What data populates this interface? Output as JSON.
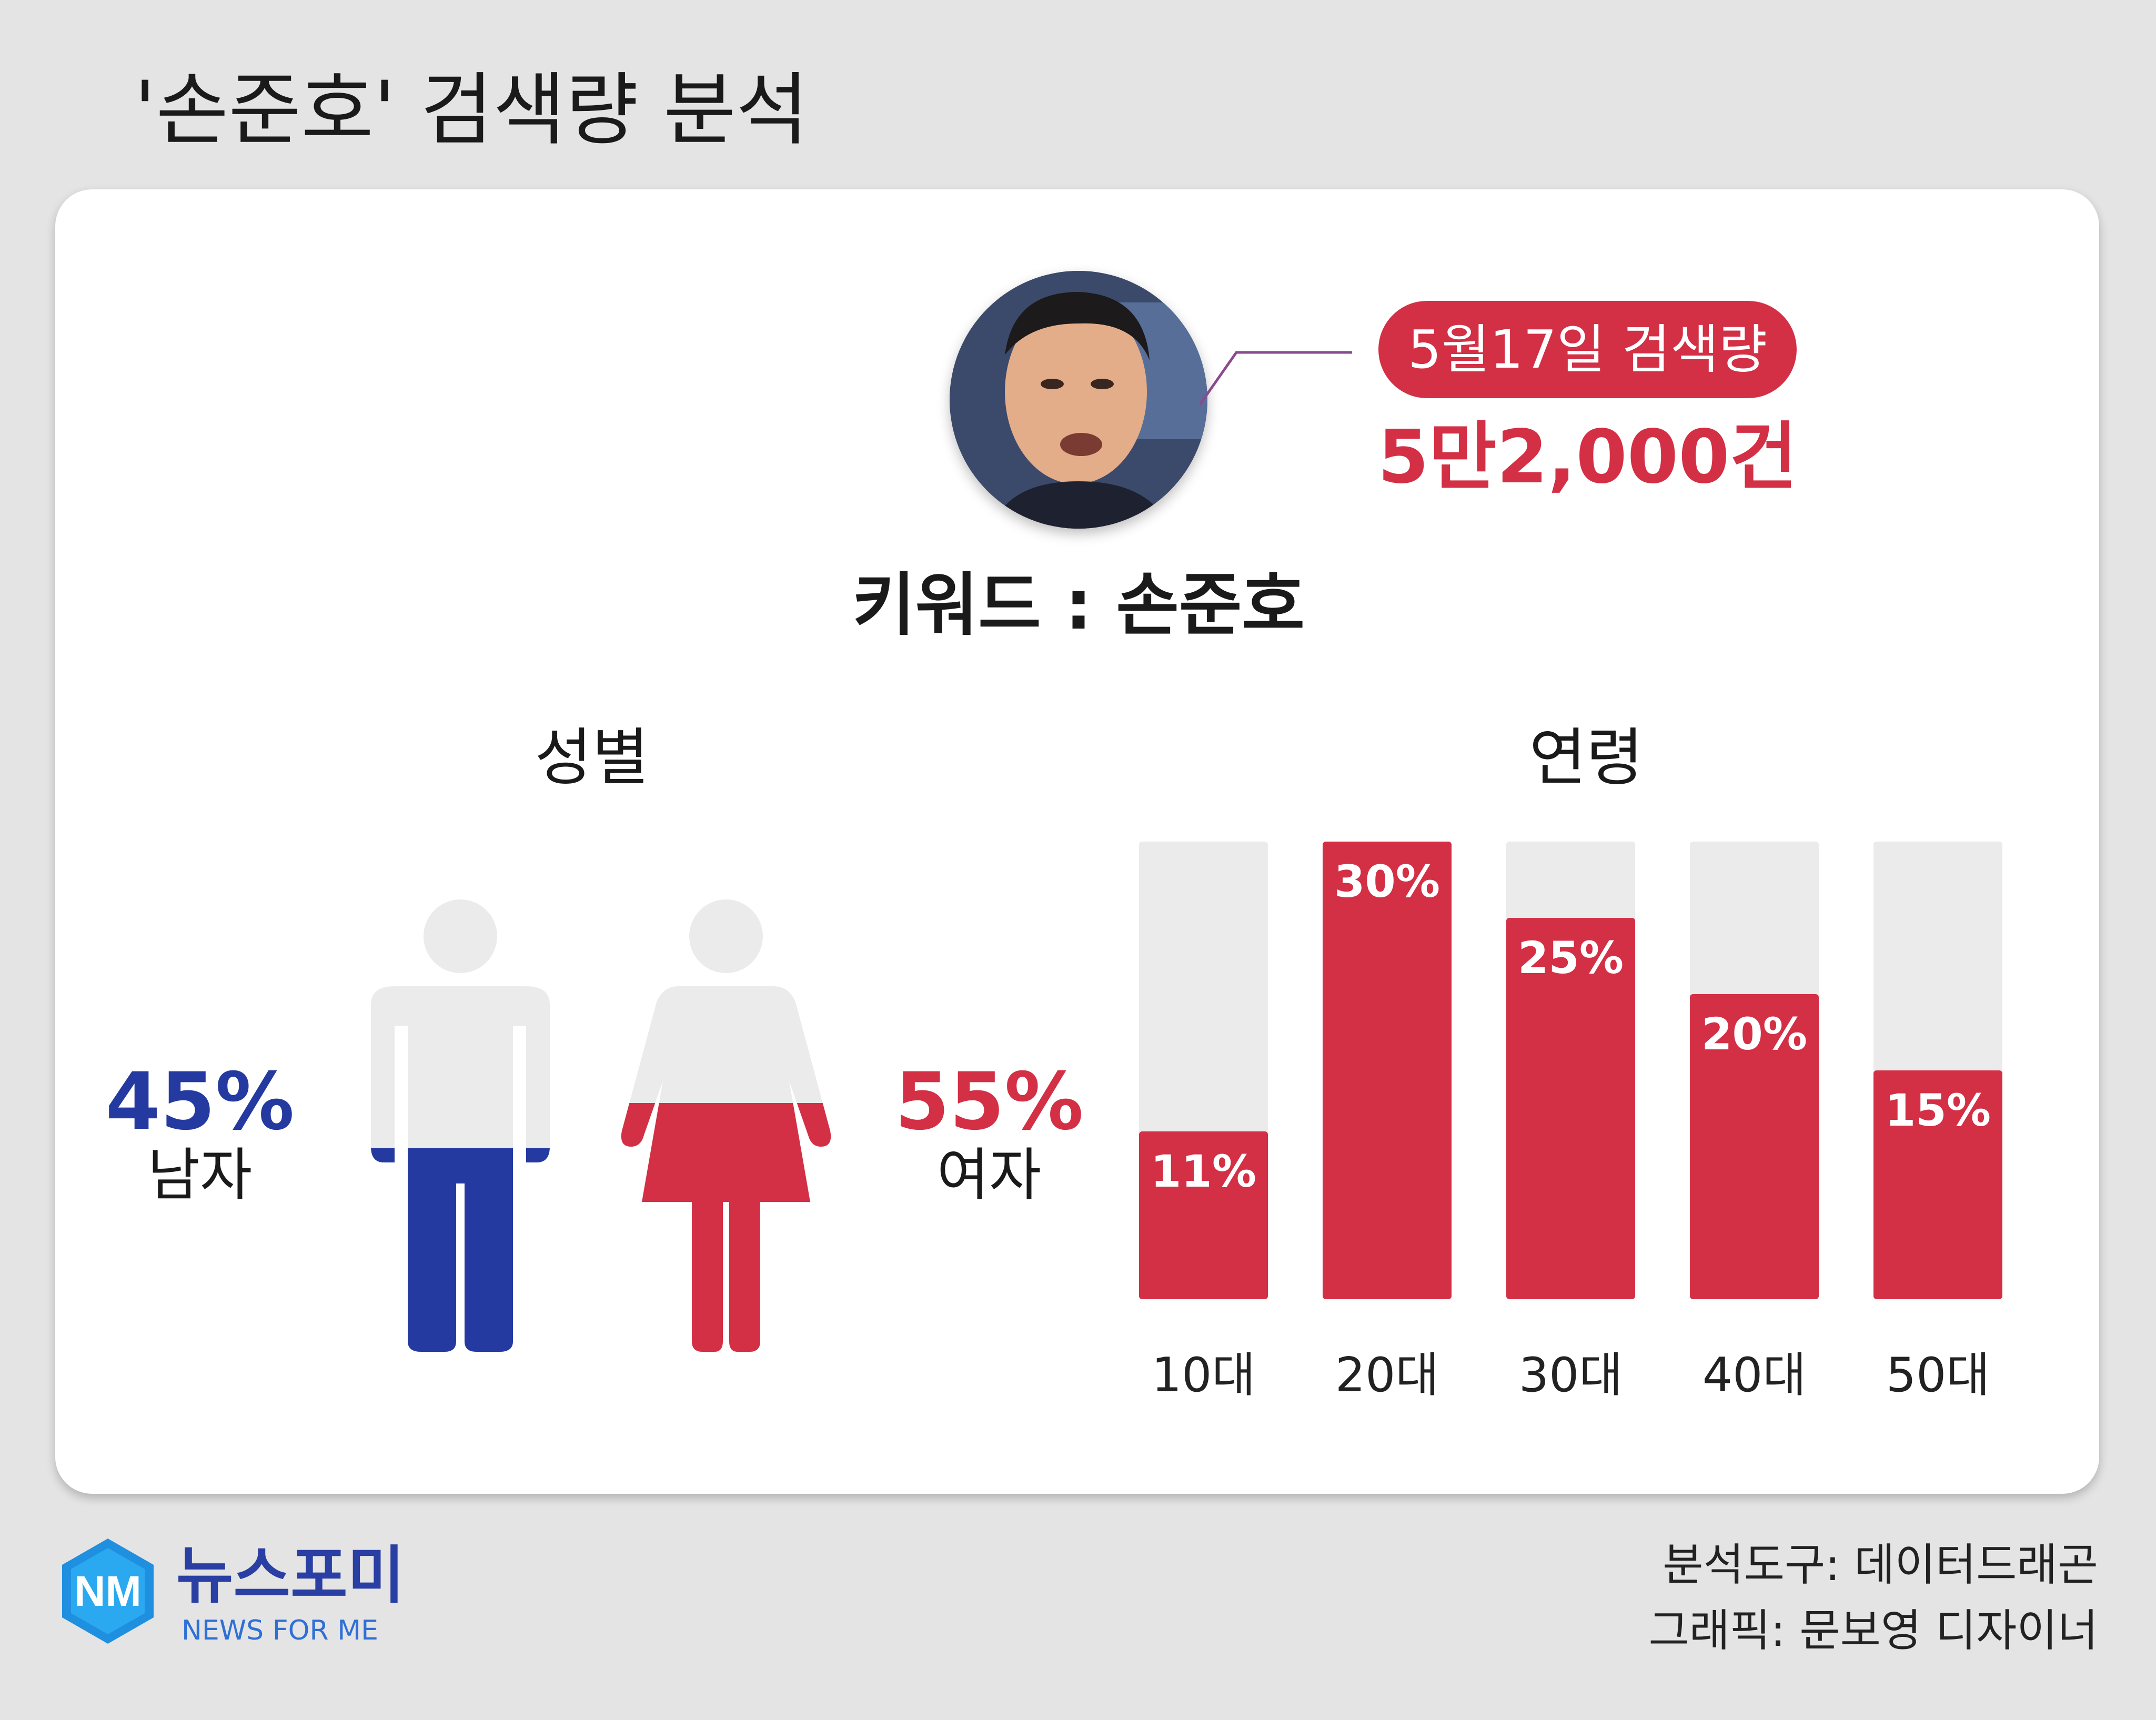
{
  "title": "'손준호' 검색량 분석",
  "headline": {
    "date_label": "5월17일 검색량",
    "count": "5만2,000건",
    "keyword": "키워드 : 손준호"
  },
  "gender": {
    "title": "성별",
    "male": {
      "percent": "45%",
      "label": "남자",
      "share": 45,
      "color": "#243aa0"
    },
    "female": {
      "percent": "55%",
      "label": "여자",
      "share": 55,
      "color": "#d32f45"
    }
  },
  "age": {
    "title": "연령"
  },
  "chart_data": [
    {
      "type": "bar",
      "categories": [
        "10대",
        "20대",
        "30대",
        "40대",
        "50대"
      ],
      "values": [
        11,
        30,
        25,
        20,
        15
      ],
      "value_labels": [
        "11%",
        "30%",
        "25%",
        "20%",
        "15%"
      ],
      "ylim": [
        0,
        30
      ],
      "bar_color": "#d32f45",
      "track_color": "#ebebeb"
    }
  ],
  "footer": {
    "brand_name": "뉴스포미",
    "brand_sub": "NEWS FOR ME",
    "logo_text": "NM",
    "tool_credit": "분석도구: 데이터드래곤",
    "graphic_credit": "그래픽: 문보영 디자이너"
  }
}
